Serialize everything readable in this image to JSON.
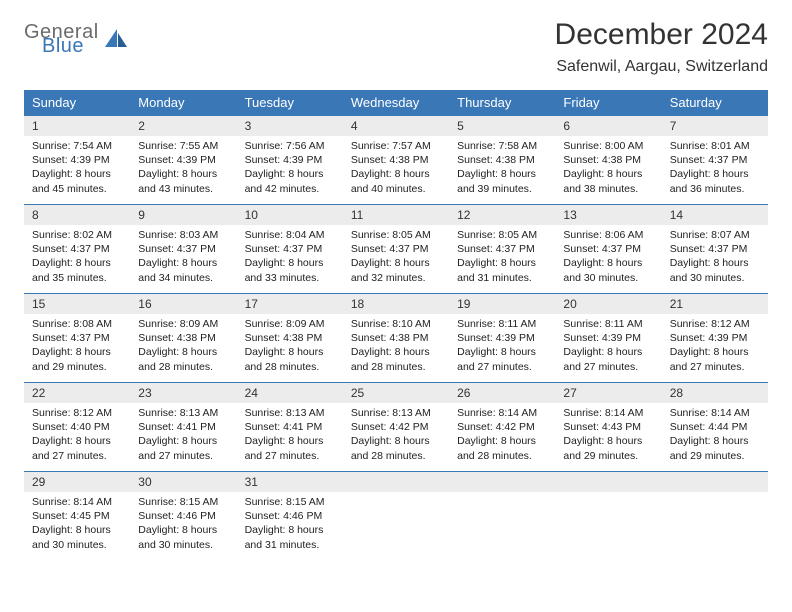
{
  "brand": {
    "top": "General",
    "bottom": "Blue"
  },
  "title": "December 2024",
  "subtitle": "Safenwil, Aargau, Switzerland",
  "colors": {
    "header_bg": "#3a77b7",
    "header_text": "#ffffff",
    "daynum_bg": "#ececec",
    "row_border": "#3a77b7",
    "logo_top": "#6b6b6b",
    "logo_bottom": "#3a77b7"
  },
  "weekdays": [
    "Sunday",
    "Monday",
    "Tuesday",
    "Wednesday",
    "Thursday",
    "Friday",
    "Saturday"
  ],
  "weeks": [
    [
      {
        "n": "1",
        "sunrise": "7:54 AM",
        "sunset": "4:39 PM",
        "daylight": "8 hours and 45 minutes."
      },
      {
        "n": "2",
        "sunrise": "7:55 AM",
        "sunset": "4:39 PM",
        "daylight": "8 hours and 43 minutes."
      },
      {
        "n": "3",
        "sunrise": "7:56 AM",
        "sunset": "4:39 PM",
        "daylight": "8 hours and 42 minutes."
      },
      {
        "n": "4",
        "sunrise": "7:57 AM",
        "sunset": "4:38 PM",
        "daylight": "8 hours and 40 minutes."
      },
      {
        "n": "5",
        "sunrise": "7:58 AM",
        "sunset": "4:38 PM",
        "daylight": "8 hours and 39 minutes."
      },
      {
        "n": "6",
        "sunrise": "8:00 AM",
        "sunset": "4:38 PM",
        "daylight": "8 hours and 38 minutes."
      },
      {
        "n": "7",
        "sunrise": "8:01 AM",
        "sunset": "4:37 PM",
        "daylight": "8 hours and 36 minutes."
      }
    ],
    [
      {
        "n": "8",
        "sunrise": "8:02 AM",
        "sunset": "4:37 PM",
        "daylight": "8 hours and 35 minutes."
      },
      {
        "n": "9",
        "sunrise": "8:03 AM",
        "sunset": "4:37 PM",
        "daylight": "8 hours and 34 minutes."
      },
      {
        "n": "10",
        "sunrise": "8:04 AM",
        "sunset": "4:37 PM",
        "daylight": "8 hours and 33 minutes."
      },
      {
        "n": "11",
        "sunrise": "8:05 AM",
        "sunset": "4:37 PM",
        "daylight": "8 hours and 32 minutes."
      },
      {
        "n": "12",
        "sunrise": "8:05 AM",
        "sunset": "4:37 PM",
        "daylight": "8 hours and 31 minutes."
      },
      {
        "n": "13",
        "sunrise": "8:06 AM",
        "sunset": "4:37 PM",
        "daylight": "8 hours and 30 minutes."
      },
      {
        "n": "14",
        "sunrise": "8:07 AM",
        "sunset": "4:37 PM",
        "daylight": "8 hours and 30 minutes."
      }
    ],
    [
      {
        "n": "15",
        "sunrise": "8:08 AM",
        "sunset": "4:37 PM",
        "daylight": "8 hours and 29 minutes."
      },
      {
        "n": "16",
        "sunrise": "8:09 AM",
        "sunset": "4:38 PM",
        "daylight": "8 hours and 28 minutes."
      },
      {
        "n": "17",
        "sunrise": "8:09 AM",
        "sunset": "4:38 PM",
        "daylight": "8 hours and 28 minutes."
      },
      {
        "n": "18",
        "sunrise": "8:10 AM",
        "sunset": "4:38 PM",
        "daylight": "8 hours and 28 minutes."
      },
      {
        "n": "19",
        "sunrise": "8:11 AM",
        "sunset": "4:39 PM",
        "daylight": "8 hours and 27 minutes."
      },
      {
        "n": "20",
        "sunrise": "8:11 AM",
        "sunset": "4:39 PM",
        "daylight": "8 hours and 27 minutes."
      },
      {
        "n": "21",
        "sunrise": "8:12 AM",
        "sunset": "4:39 PM",
        "daylight": "8 hours and 27 minutes."
      }
    ],
    [
      {
        "n": "22",
        "sunrise": "8:12 AM",
        "sunset": "4:40 PM",
        "daylight": "8 hours and 27 minutes."
      },
      {
        "n": "23",
        "sunrise": "8:13 AM",
        "sunset": "4:41 PM",
        "daylight": "8 hours and 27 minutes."
      },
      {
        "n": "24",
        "sunrise": "8:13 AM",
        "sunset": "4:41 PM",
        "daylight": "8 hours and 27 minutes."
      },
      {
        "n": "25",
        "sunrise": "8:13 AM",
        "sunset": "4:42 PM",
        "daylight": "8 hours and 28 minutes."
      },
      {
        "n": "26",
        "sunrise": "8:14 AM",
        "sunset": "4:42 PM",
        "daylight": "8 hours and 28 minutes."
      },
      {
        "n": "27",
        "sunrise": "8:14 AM",
        "sunset": "4:43 PM",
        "daylight": "8 hours and 29 minutes."
      },
      {
        "n": "28",
        "sunrise": "8:14 AM",
        "sunset": "4:44 PM",
        "daylight": "8 hours and 29 minutes."
      }
    ],
    [
      {
        "n": "29",
        "sunrise": "8:14 AM",
        "sunset": "4:45 PM",
        "daylight": "8 hours and 30 minutes."
      },
      {
        "n": "30",
        "sunrise": "8:15 AM",
        "sunset": "4:46 PM",
        "daylight": "8 hours and 30 minutes."
      },
      {
        "n": "31",
        "sunrise": "8:15 AM",
        "sunset": "4:46 PM",
        "daylight": "8 hours and 31 minutes."
      },
      null,
      null,
      null,
      null
    ]
  ],
  "labels": {
    "sunrise": "Sunrise:",
    "sunset": "Sunset:",
    "daylight": "Daylight:"
  }
}
